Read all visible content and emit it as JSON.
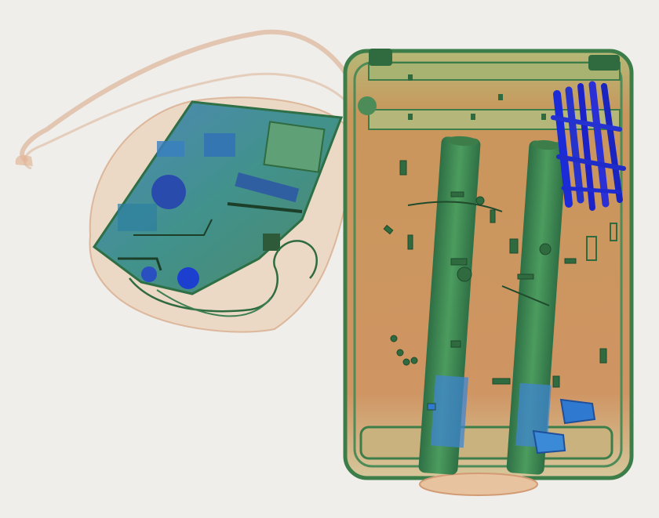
{
  "scene": {
    "kind": "xray-baggage-scan",
    "palette": {
      "background": "#efeeea",
      "organic": "#c98f5a",
      "organic_light": "#e7c3a0",
      "mixed": "#4f9a5a",
      "mixed_dark": "#2f6b3f",
      "inorganic": "#2f57c9",
      "inorganic_dark": "#1d2fb8",
      "outline": "#3d7d4a"
    }
  },
  "objects": [
    {
      "name": "handbag",
      "contents": [
        "laptop-circuit-board",
        "cable"
      ]
    },
    {
      "name": "suitcase",
      "contents": [
        "trolley-handle-left",
        "trolley-handle-right",
        "metal-items-cluster",
        "wheel-left",
        "wheel-right",
        "small-metal-parts"
      ]
    }
  ]
}
